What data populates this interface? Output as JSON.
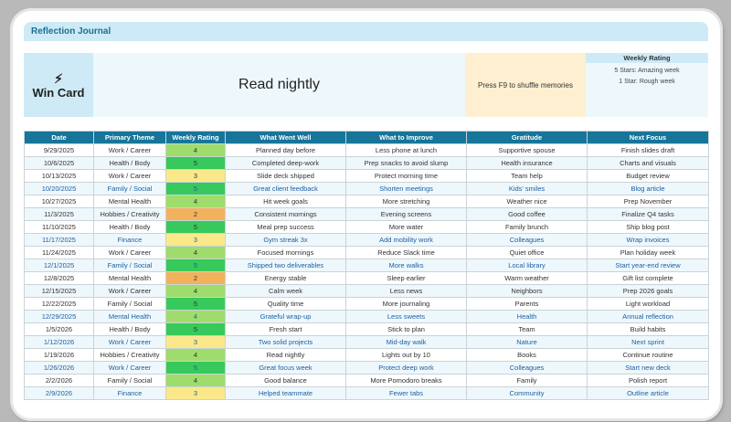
{
  "title": "Reflection Journal",
  "card": {
    "icon": "lightning-bolt-icon",
    "label": "Win Card",
    "quote": "Read nightly",
    "tip": "Press F9 to shuffle memories",
    "legend_title": "Weekly Rating",
    "legend": [
      "5 Stars: Amazing week",
      "1 Star: Rough week"
    ]
  },
  "colors": {
    "header": "#17759a",
    "r5": "#37c95b",
    "r4": "#9edc6c",
    "r3": "#fbe88a",
    "r2": "#f2b25c"
  },
  "columns": [
    "Date",
    "Primary Theme",
    "Weekly Rating",
    "What Went Well",
    "What to Improve",
    "Gratitude",
    "Next Focus"
  ],
  "rows": [
    [
      "9/29/2025",
      "Work / Career",
      "4",
      "Planned day before",
      "Less phone at lunch",
      "Supportive spouse",
      "Finish slides draft"
    ],
    [
      "10/6/2025",
      "Health / Body",
      "5",
      "Completed deep-work",
      "Prep snacks to avoid slump",
      "Health insurance",
      "Charts and visuals"
    ],
    [
      "10/13/2025",
      "Work / Career",
      "3",
      "Slide deck shipped",
      "Protect morning time",
      "Team help",
      "Budget review"
    ],
    [
      "10/20/2025",
      "Family / Social",
      "5",
      "Great client feedback",
      "Shorten meetings",
      "Kids' smiles",
      "Blog article"
    ],
    [
      "10/27/2025",
      "Mental Health",
      "4",
      "Hit week goals",
      "More stretching",
      "Weather nice",
      "Prep November"
    ],
    [
      "11/3/2025",
      "Hobbies / Creativity",
      "2",
      "Consistent mornings",
      "Evening screens",
      "Good coffee",
      "Finalize Q4 tasks"
    ],
    [
      "11/10/2025",
      "Health / Body",
      "5",
      "Meal prep success",
      "More water",
      "Family brunch",
      "Ship blog post"
    ],
    [
      "11/17/2025",
      "Finance",
      "3",
      "Gym streak 3x",
      "Add mobility work",
      "Colleagues",
      "Wrap invoices"
    ],
    [
      "11/24/2025",
      "Work / Career",
      "4",
      "Focused mornings",
      "Reduce Slack time",
      "Quiet office",
      "Plan holiday week"
    ],
    [
      "12/1/2025",
      "Family / Social",
      "5",
      "Shipped two deliverables",
      "More walks",
      "Local library",
      "Start year-end review"
    ],
    [
      "12/8/2025",
      "Mental Health",
      "2",
      "Energy stable",
      "Sleep earlier",
      "Warm weather",
      "Gift list complete"
    ],
    [
      "12/15/2025",
      "Work / Career",
      "4",
      "Calm week",
      "Less news",
      "Neighbors",
      "Prep 2026 goals"
    ],
    [
      "12/22/2025",
      "Family / Social",
      "5",
      "Quality time",
      "More journaling",
      "Parents",
      "Light workload"
    ],
    [
      "12/29/2025",
      "Mental Health",
      "4",
      "Grateful wrap-up",
      "Less sweets",
      "Health",
      "Annual reflection"
    ],
    [
      "1/5/2026",
      "Health / Body",
      "5",
      "Fresh start",
      "Stick to plan",
      "Team",
      "Build habits"
    ],
    [
      "1/12/2026",
      "Work / Career",
      "3",
      "Two solid projects",
      "Mid-day walk",
      "Nature",
      "Next sprint"
    ],
    [
      "1/19/2026",
      "Hobbies / Creativity",
      "4",
      "Read nightly",
      "Lights out by 10",
      "Books",
      "Continue routine"
    ],
    [
      "1/26/2026",
      "Work / Career",
      "5",
      "Great focus week",
      "Protect deep work",
      "Colleagues",
      "Start new deck"
    ],
    [
      "2/2/2026",
      "Family / Social",
      "4",
      "Good balance",
      "More Pomodoro breaks",
      "Family",
      "Polish report"
    ],
    [
      "2/9/2026",
      "Finance",
      "3",
      "Helped teammate",
      "Fewer tabs",
      "Community",
      "Outline article"
    ]
  ],
  "highlight_rows": [
    3,
    7,
    9,
    13,
    15,
    17,
    19
  ]
}
